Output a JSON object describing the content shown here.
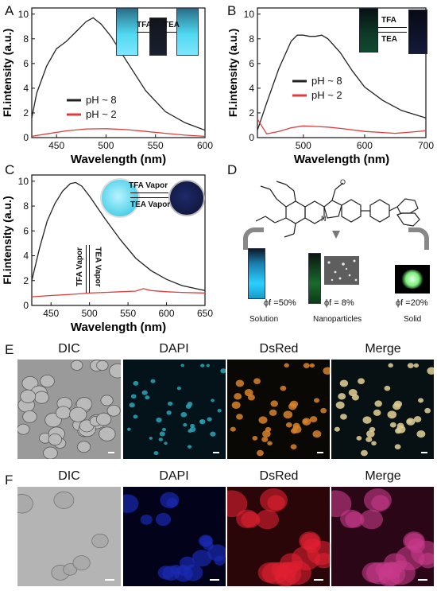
{
  "panels": {
    "A": {
      "letter": "A"
    },
    "B": {
      "letter": "B"
    },
    "C": {
      "letter": "C"
    },
    "D": {
      "letter": "D"
    },
    "E": {
      "letter": "E"
    },
    "F": {
      "letter": "F"
    }
  },
  "inset_labels": {
    "A_tfa": "TFA",
    "A_tea": "TEA",
    "B_tfa": "TFA",
    "B_tea": "TEA",
    "C_tfa_vapor": "TFA Vapor",
    "C_tea_vapor": "TEA Vapor",
    "C_tfa_vapor_vert": "TFA Vapor",
    "C_tea_vapor_vert": "TEA Vapor"
  },
  "panel_d": {
    "captions": [
      "Solution",
      "Nanoparticles",
      "Solid"
    ],
    "quantum_yields": [
      "ϕf =50%",
      "ϕf = 8%",
      "ϕf =20%"
    ]
  },
  "panel_e": {
    "labels": [
      "DIC",
      "DAPI",
      "DsRed",
      "Merge"
    ]
  },
  "panel_f": {
    "labels": [
      "DIC",
      "DAPI",
      "DsRed",
      "Merge"
    ]
  },
  "chart_data": [
    {
      "type": "line",
      "xlabel": "Wavelength (nm)",
      "ylabel": "Fl.intensity (a.u.)",
      "xlim": [
        425,
        600
      ],
      "ylim": [
        0,
        10.5
      ],
      "xticks": [
        450,
        500,
        550,
        600
      ],
      "yticks": [
        0,
        2,
        4,
        6,
        8,
        10
      ],
      "legend_position": "center",
      "colors": {
        "pH ~ 8": "#222222",
        "pH ~ 2": "#e03c3c"
      },
      "series": [
        {
          "name": "pH ~ 8",
          "x": [
            425,
            430,
            440,
            450,
            455,
            460,
            470,
            480,
            487,
            495,
            505,
            520,
            540,
            560,
            580,
            600
          ],
          "y": [
            1.6,
            3.6,
            5.8,
            7.2,
            7.5,
            7.8,
            8.6,
            9.4,
            9.7,
            9.2,
            8.2,
            6.3,
            3.8,
            2.1,
            1.2,
            0.6
          ]
        },
        {
          "name": "pH ~ 2",
          "x": [
            425,
            440,
            460,
            480,
            500,
            520,
            540,
            560,
            580,
            600
          ],
          "y": [
            0.1,
            0.3,
            0.55,
            0.7,
            0.72,
            0.65,
            0.5,
            0.35,
            0.2,
            0.1
          ]
        }
      ]
    },
    {
      "type": "line",
      "xlabel": "Wavelength (nm)",
      "ylabel": "Fl.intensity (a.u.)",
      "xlim": [
        425,
        700
      ],
      "ylim": [
        0,
        10.5
      ],
      "xticks": [
        500,
        600,
        700
      ],
      "yticks": [
        0,
        2,
        4,
        6,
        8,
        10
      ],
      "legend_position": "center-right",
      "colors": {
        "pH ~ 8": "#222222",
        "pH ~ 2": "#e03c3c"
      },
      "series": [
        {
          "name": "pH ~ 8",
          "x": [
            425,
            440,
            460,
            480,
            490,
            500,
            510,
            520,
            530,
            540,
            560,
            580,
            600,
            630,
            660,
            700
          ],
          "y": [
            0.6,
            2.8,
            5.6,
            7.8,
            8.3,
            8.3,
            8.2,
            8.2,
            8.3,
            8.0,
            6.9,
            5.4,
            4.1,
            3.0,
            2.2,
            1.6
          ]
        },
        {
          "name": "pH ~ 2",
          "x": [
            425,
            440,
            460,
            480,
            500,
            520,
            540,
            560,
            600,
            650,
            700
          ],
          "y": [
            1.5,
            0.3,
            0.5,
            0.8,
            0.95,
            0.9,
            0.85,
            0.75,
            0.5,
            0.35,
            0.55
          ]
        }
      ]
    },
    {
      "type": "line",
      "xlabel": "Wavelength (nm)",
      "ylabel": "Fl.intensity (a.u.)",
      "xlim": [
        425,
        650
      ],
      "ylim": [
        0,
        10.5
      ],
      "xticks": [
        450,
        500,
        550,
        600,
        650
      ],
      "yticks": [
        0,
        2,
        4,
        6,
        8,
        10
      ],
      "colors": {
        "upper": "#222222",
        "lower": "#e03c3c"
      },
      "series": [
        {
          "x": [
            425,
            435,
            445,
            455,
            465,
            475,
            482,
            490,
            500,
            520,
            540,
            560,
            580,
            600,
            620,
            650
          ],
          "y": [
            2.0,
            4.6,
            6.8,
            8.2,
            9.2,
            9.8,
            9.9,
            9.6,
            8.8,
            7.0,
            5.3,
            3.8,
            2.8,
            2.1,
            1.6,
            1.2
          ]
        },
        {
          "x": [
            425,
            450,
            480,
            500,
            520,
            540,
            560,
            570,
            580,
            600,
            620,
            650
          ],
          "y": [
            0.7,
            0.8,
            0.9,
            1.0,
            1.05,
            1.1,
            1.15,
            1.35,
            1.2,
            1.1,
            1.05,
            1.0
          ]
        }
      ]
    }
  ]
}
